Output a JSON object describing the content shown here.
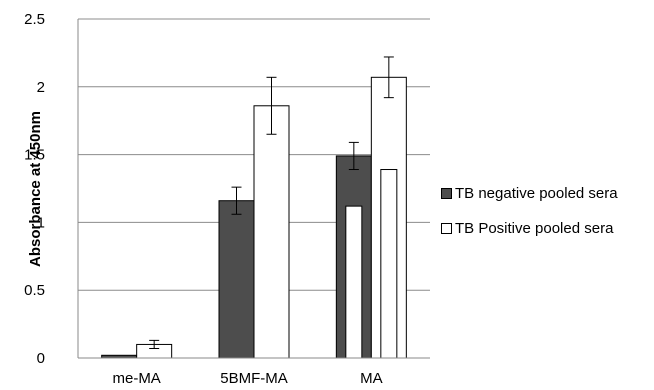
{
  "chart_data": {
    "type": "bar",
    "title": "",
    "xlabel": "",
    "ylabel": "Absorbance  at 450nm",
    "categories": [
      "me-MA",
      "5BMF-MA",
      "MA"
    ],
    "ylim": [
      0,
      2.5
    ],
    "yticks": [
      "0",
      "0.5",
      "1",
      "1.5",
      "2",
      "2.5"
    ],
    "grid": true,
    "legend_position": "right",
    "series": [
      {
        "name": "TB negative pooled sera",
        "color": "#4d4d4d",
        "values": [
          0.02,
          1.16,
          1.49
        ],
        "errors": [
          0,
          0.1,
          0.1
        ]
      },
      {
        "name": "TB Positive pooled sera",
        "color": "#ffffff",
        "values": [
          0.1,
          1.86,
          2.07
        ],
        "errors": [
          0.03,
          0.21,
          0.15
        ]
      }
    ],
    "overlay_bars": {
      "category": "MA",
      "color": "#ffffff",
      "values": [
        1.12,
        1.39
      ]
    }
  }
}
